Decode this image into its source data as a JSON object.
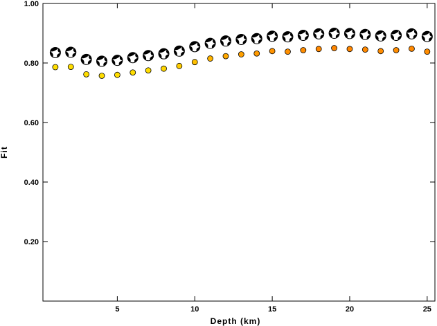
{
  "chart_data": {
    "type": "scatter",
    "title": "",
    "xlabel": "Depth (km)",
    "ylabel": "Fit",
    "xlim": [
      0.2,
      25.5
    ],
    "ylim": [
      0.0,
      1.0
    ],
    "x_ticks": [
      5,
      10,
      15,
      20,
      25
    ],
    "y_ticks": [
      0.2,
      0.4,
      0.6,
      0.8,
      1.0
    ],
    "x_tick_labels": [
      "5",
      "10",
      "15",
      "20",
      "25"
    ],
    "y_tick_labels": [
      "0.20",
      "0.40",
      "0.60",
      "0.80",
      "1.00"
    ],
    "grid": false,
    "series": [
      {
        "marker": "focal-mechanism-beachball",
        "x": [
          1,
          2,
          3,
          4,
          5,
          6,
          7,
          8,
          9,
          10,
          11,
          12,
          13,
          14,
          15,
          16,
          17,
          18,
          19,
          20,
          21,
          22,
          23,
          24,
          25
        ],
        "values": [
          0.835,
          0.836,
          0.812,
          0.806,
          0.809,
          0.818,
          0.825,
          0.831,
          0.84,
          0.855,
          0.866,
          0.874,
          0.879,
          0.882,
          0.89,
          0.888,
          0.893,
          0.898,
          0.9,
          0.899,
          0.896,
          0.891,
          0.893,
          0.898,
          0.889
        ]
      },
      {
        "marker": "colored-dot",
        "x": [
          1,
          2,
          3,
          4,
          5,
          6,
          7,
          8,
          9,
          10,
          11,
          12,
          13,
          14,
          15,
          16,
          17,
          18,
          19,
          20,
          21,
          22,
          23,
          24,
          25
        ],
        "values": [
          0.786,
          0.787,
          0.762,
          0.757,
          0.76,
          0.768,
          0.775,
          0.781,
          0.79,
          0.803,
          0.815,
          0.823,
          0.829,
          0.832,
          0.84,
          0.838,
          0.843,
          0.847,
          0.85,
          0.847,
          0.845,
          0.84,
          0.843,
          0.848,
          0.838
        ],
        "colors": [
          "#ffdd00",
          "#ffdd00",
          "#ffdd00",
          "#ffdd00",
          "#ffdd00",
          "#ffdd00",
          "#ffdd00",
          "#ffd500",
          "#ffcc00",
          "#ffc000",
          "#ffb400",
          "#ffa800",
          "#ffa000",
          "#ff9a00",
          "#ff9300",
          "#ff9000",
          "#ff8c00",
          "#ff8800",
          "#ff8600",
          "#ff8600",
          "#ff8800",
          "#ff8c00",
          "#ff8c00",
          "#ff8800",
          "#ff8c00"
        ]
      }
    ]
  }
}
